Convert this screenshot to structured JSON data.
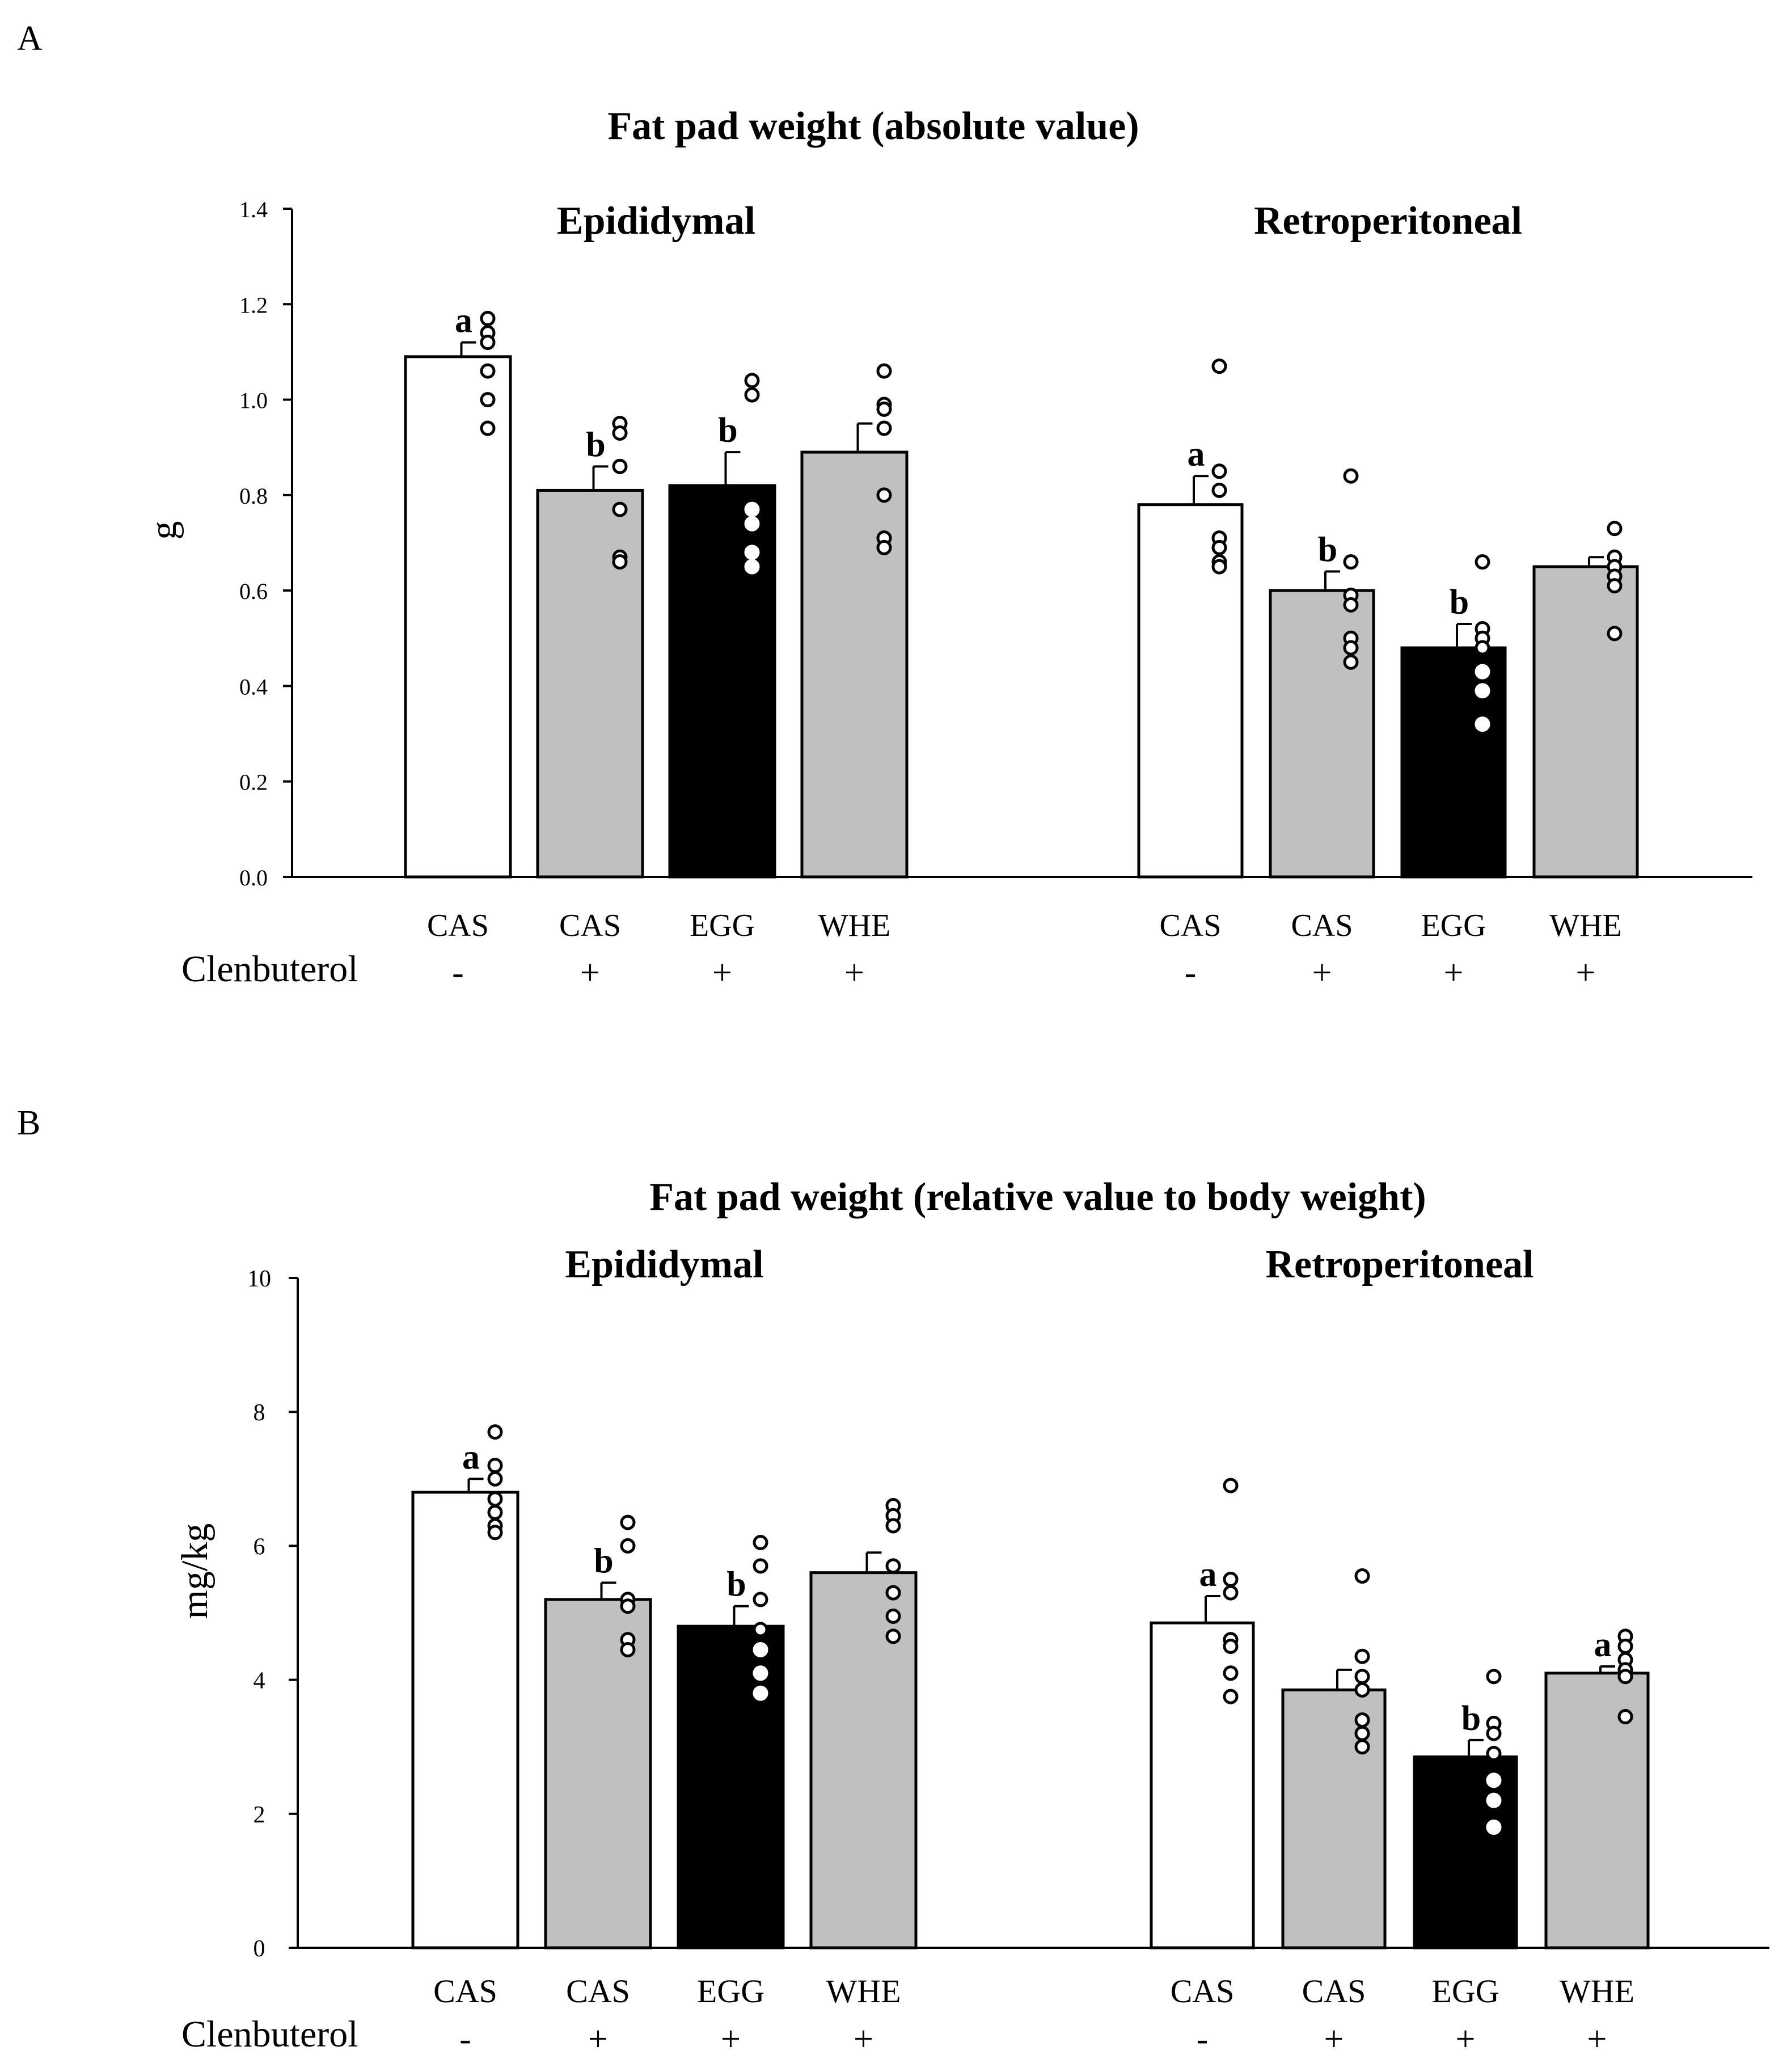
{
  "colors": {
    "white_bar": "#ffffff",
    "gray_bar": "#c0c0c0",
    "black_bar": "#000000",
    "stroke": "#000000",
    "dot_on_light": "#ffffff",
    "dot_on_dark": "#ffffff"
  },
  "chart_data": [
    {
      "type": "bar",
      "panel_label": "A",
      "title": "Fat pad weight   (absolute value)",
      "ylabel": "g",
      "ylim": [
        0,
        1.4
      ],
      "yticks": [
        "0.0",
        "0.2",
        "0.4",
        "0.6",
        "0.8",
        "1.0",
        "1.2",
        "1.4"
      ],
      "ytick_values": [
        0,
        0.2,
        0.4,
        0.6,
        0.8,
        1.0,
        1.2,
        1.4
      ],
      "row_label": "Clenbuterol",
      "groups": [
        {
          "name": "Epididymal",
          "bars": [
            {
              "diet": "CAS",
              "clenbuterol": "-",
              "fill": "white",
              "value": 1.09,
              "error": 0.03,
              "letter": "a",
              "points": [
                1.17,
                1.14,
                1.12,
                1.06,
                1.0,
                0.94
              ]
            },
            {
              "diet": "CAS",
              "clenbuterol": "+",
              "fill": "gray",
              "value": 0.81,
              "error": 0.05,
              "letter": "b",
              "points": [
                0.95,
                0.93,
                0.86,
                0.77,
                0.67,
                0.66
              ]
            },
            {
              "diet": "EGG",
              "clenbuterol": "+",
              "fill": "black",
              "value": 0.82,
              "error": 0.07,
              "letter": "b",
              "points": [
                1.04,
                1.01,
                0.77,
                0.74,
                0.68,
                0.65
              ]
            },
            {
              "diet": "WHE",
              "clenbuterol": "+",
              "fill": "gray",
              "value": 0.89,
              "error": 0.06,
              "letter": "",
              "points": [
                1.06,
                0.99,
                0.98,
                0.94,
                0.8,
                0.71,
                0.69
              ]
            }
          ]
        },
        {
          "name": "Retroperitoneal",
          "bars": [
            {
              "diet": "CAS",
              "clenbuterol": "-",
              "fill": "white",
              "value": 0.78,
              "error": 0.06,
              "letter": "a",
              "points": [
                1.07,
                0.85,
                0.81,
                0.71,
                0.69,
                0.66,
                0.65
              ]
            },
            {
              "diet": "CAS",
              "clenbuterol": "+",
              "fill": "gray",
              "value": 0.6,
              "error": 0.04,
              "letter": "b",
              "points": [
                0.84,
                0.66,
                0.59,
                0.57,
                0.5,
                0.48,
                0.45
              ]
            },
            {
              "diet": "EGG",
              "clenbuterol": "+",
              "fill": "black",
              "value": 0.48,
              "error": 0.05,
              "letter": "b",
              "points": [
                0.66,
                0.52,
                0.5,
                0.48,
                0.43,
                0.39,
                0.32
              ]
            },
            {
              "diet": "WHE",
              "clenbuterol": "+",
              "fill": "gray",
              "value": 0.65,
              "error": 0.02,
              "letter": "",
              "points": [
                0.73,
                0.67,
                0.65,
                0.63,
                0.61,
                0.51
              ]
            }
          ]
        }
      ]
    },
    {
      "type": "bar",
      "panel_label": "B",
      "title": "Fat pad weight (relative value to body weight)",
      "ylabel": "mg/kg",
      "ylim": [
        0,
        10
      ],
      "yticks": [
        "0",
        "2",
        "4",
        "6",
        "8",
        "10"
      ],
      "ytick_values": [
        0,
        2,
        4,
        6,
        8,
        10
      ],
      "row_label": "Clenbuterol",
      "groups": [
        {
          "name": "Epididymal",
          "bars": [
            {
              "diet": "CAS",
              "clenbuterol": "-",
              "fill": "white",
              "value": 6.8,
              "error": 0.2,
              "letter": "a",
              "points": [
                7.7,
                7.2,
                7.0,
                6.7,
                6.5,
                6.3,
                6.2
              ]
            },
            {
              "diet": "CAS",
              "clenbuterol": "+",
              "fill": "gray",
              "value": 5.2,
              "error": 0.25,
              "letter": "b",
              "points": [
                6.35,
                6.0,
                5.2,
                5.1,
                4.6,
                4.45
              ]
            },
            {
              "diet": "EGG",
              "clenbuterol": "+",
              "fill": "black",
              "value": 4.8,
              "error": 0.3,
              "letter": "b",
              "points": [
                6.05,
                5.7,
                5.2,
                4.75,
                4.45,
                4.1,
                3.8
              ]
            },
            {
              "diet": "WHE",
              "clenbuterol": "+",
              "fill": "gray",
              "value": 5.6,
              "error": 0.3,
              "letter": "",
              "points": [
                6.6,
                6.45,
                6.3,
                5.7,
                5.3,
                4.95,
                4.65
              ]
            }
          ]
        },
        {
          "name": "Retroperitoneal",
          "bars": [
            {
              "diet": "CAS",
              "clenbuterol": "-",
              "fill": "white",
              "value": 4.85,
              "error": 0.4,
              "letter": "a",
              "points": [
                6.9,
                5.5,
                5.3,
                4.6,
                4.5,
                4.1,
                3.75
              ]
            },
            {
              "diet": "CAS",
              "clenbuterol": "+",
              "fill": "gray",
              "value": 3.85,
              "error": 0.3,
              "letter": "",
              "points": [
                5.55,
                4.35,
                4.05,
                3.85,
                3.4,
                3.2,
                3.0
              ]
            },
            {
              "diet": "EGG",
              "clenbuterol": "+",
              "fill": "black",
              "value": 2.85,
              "error": 0.25,
              "letter": "b",
              "points": [
                4.05,
                3.35,
                3.2,
                2.9,
                2.5,
                2.2,
                1.8
              ]
            },
            {
              "diet": "WHE",
              "clenbuterol": "+",
              "fill": "gray",
              "value": 4.1,
              "error": 0.1,
              "letter": "a",
              "points": [
                4.65,
                4.5,
                4.3,
                4.15,
                4.05,
                3.45
              ]
            }
          ]
        }
      ]
    }
  ]
}
